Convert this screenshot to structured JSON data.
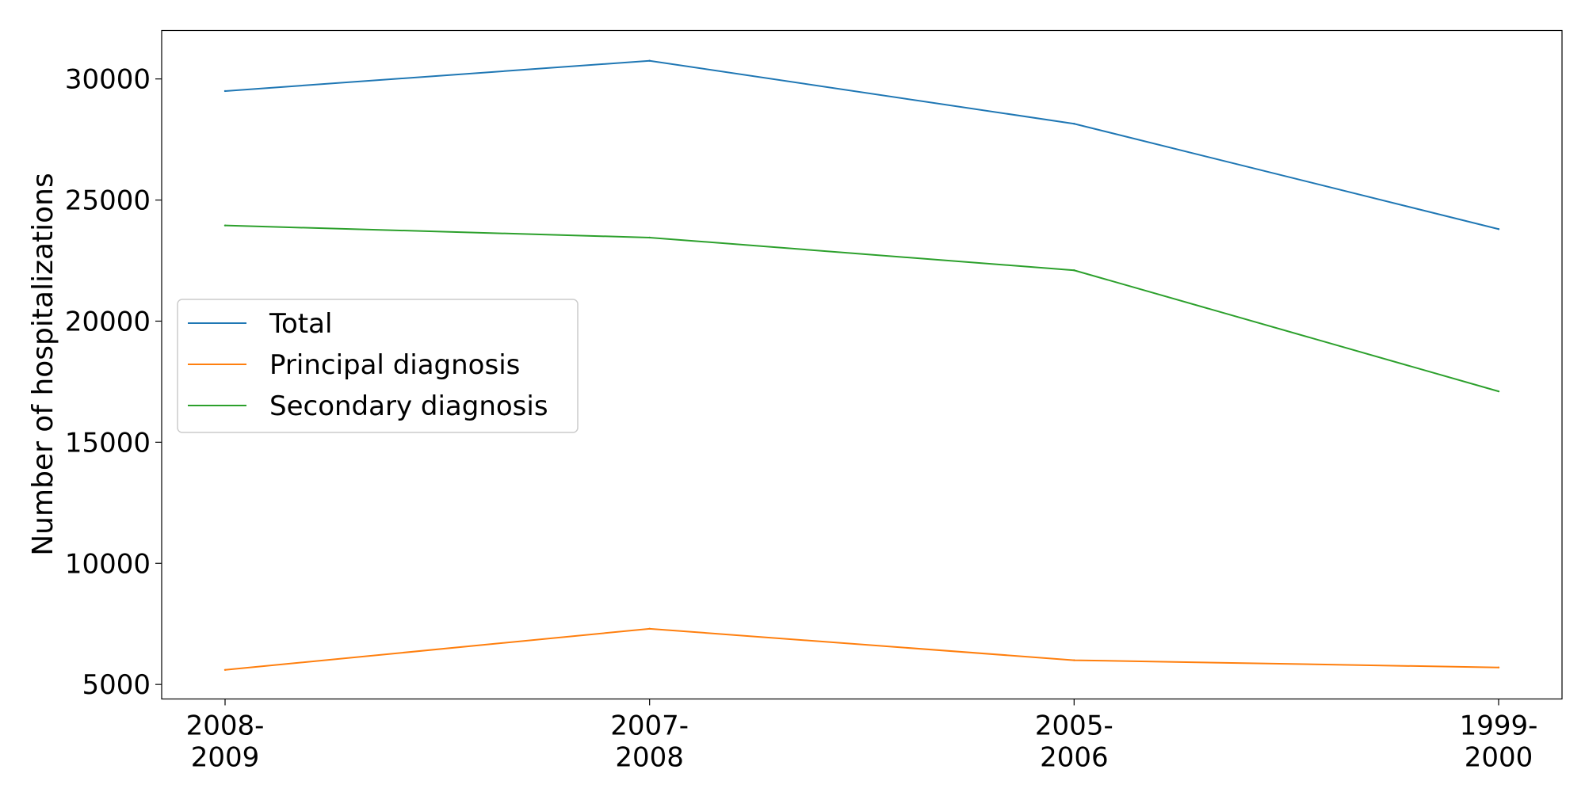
{
  "chart_data": {
    "type": "line",
    "title": "",
    "xlabel": "",
    "ylabel": "Number of hospitalizations",
    "categories": [
      "2008-2009",
      "2007-2008",
      "2005-2006",
      "1999-2000"
    ],
    "category_label_lines": [
      [
        "2008-",
        "2009"
      ],
      [
        "2007-",
        "2008"
      ],
      [
        "2005-",
        "2006"
      ],
      [
        "1999-",
        "2000"
      ]
    ],
    "yticks": [
      5000,
      10000,
      15000,
      20000,
      25000,
      30000
    ],
    "ylim": [
      4400,
      32000
    ],
    "grid": false,
    "legend_position": "center-left",
    "series": [
      {
        "name": "Total",
        "color": "#1f77b4",
        "values": [
          29500,
          30750,
          28150,
          23800
        ]
      },
      {
        "name": "Principal diagnosis",
        "color": "#ff7f0e",
        "values": [
          5600,
          7300,
          6000,
          5700
        ]
      },
      {
        "name": "Secondary diagnosis",
        "color": "#2ca02c",
        "values": [
          23950,
          23450,
          22100,
          17100
        ]
      }
    ]
  }
}
